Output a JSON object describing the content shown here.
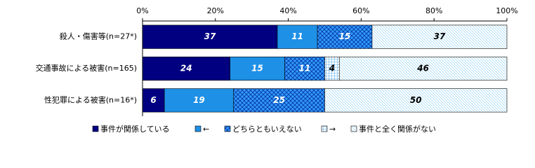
{
  "chart_data": {
    "type": "stacked-barh",
    "categories": [
      "殺人・傷害等(n=27*)",
      "交通事故による被害(n=165)",
      "性犯罪による被害(n=16*)"
    ],
    "series": [
      {
        "name": "事件が関係している",
        "color": "#000080",
        "pattern": "solid",
        "label_color": "#ffffff",
        "values": [
          37,
          24,
          6
        ]
      },
      {
        "name": "←",
        "color": "#1e90e6",
        "pattern": "solid",
        "label_color": "#ffffff",
        "values": [
          11,
          15,
          19
        ]
      },
      {
        "name": "どちらともいえない",
        "color": "#2f8fe8",
        "pattern": "crosshatch",
        "label_color": "#ffffff",
        "values": [
          15,
          11,
          25
        ]
      },
      {
        "name": "→",
        "color": "#bfefff",
        "pattern": "grid",
        "label_color": "#000000",
        "values": [
          0,
          4,
          0
        ]
      },
      {
        "name": "事件と全く関係がない",
        "color": "#e6f8ff",
        "pattern": "dots",
        "label_color": "#000000",
        "values": [
          37,
          46,
          50
        ]
      }
    ],
    "xlim": [
      0,
      100
    ],
    "xticks": [
      {
        "value": 0,
        "label": "0%"
      },
      {
        "value": 20,
        "label": "20%"
      },
      {
        "value": 40,
        "label": "40%"
      },
      {
        "value": 60,
        "label": "60%"
      },
      {
        "value": 80,
        "label": "80%"
      },
      {
        "value": 100,
        "label": "100%"
      }
    ]
  }
}
